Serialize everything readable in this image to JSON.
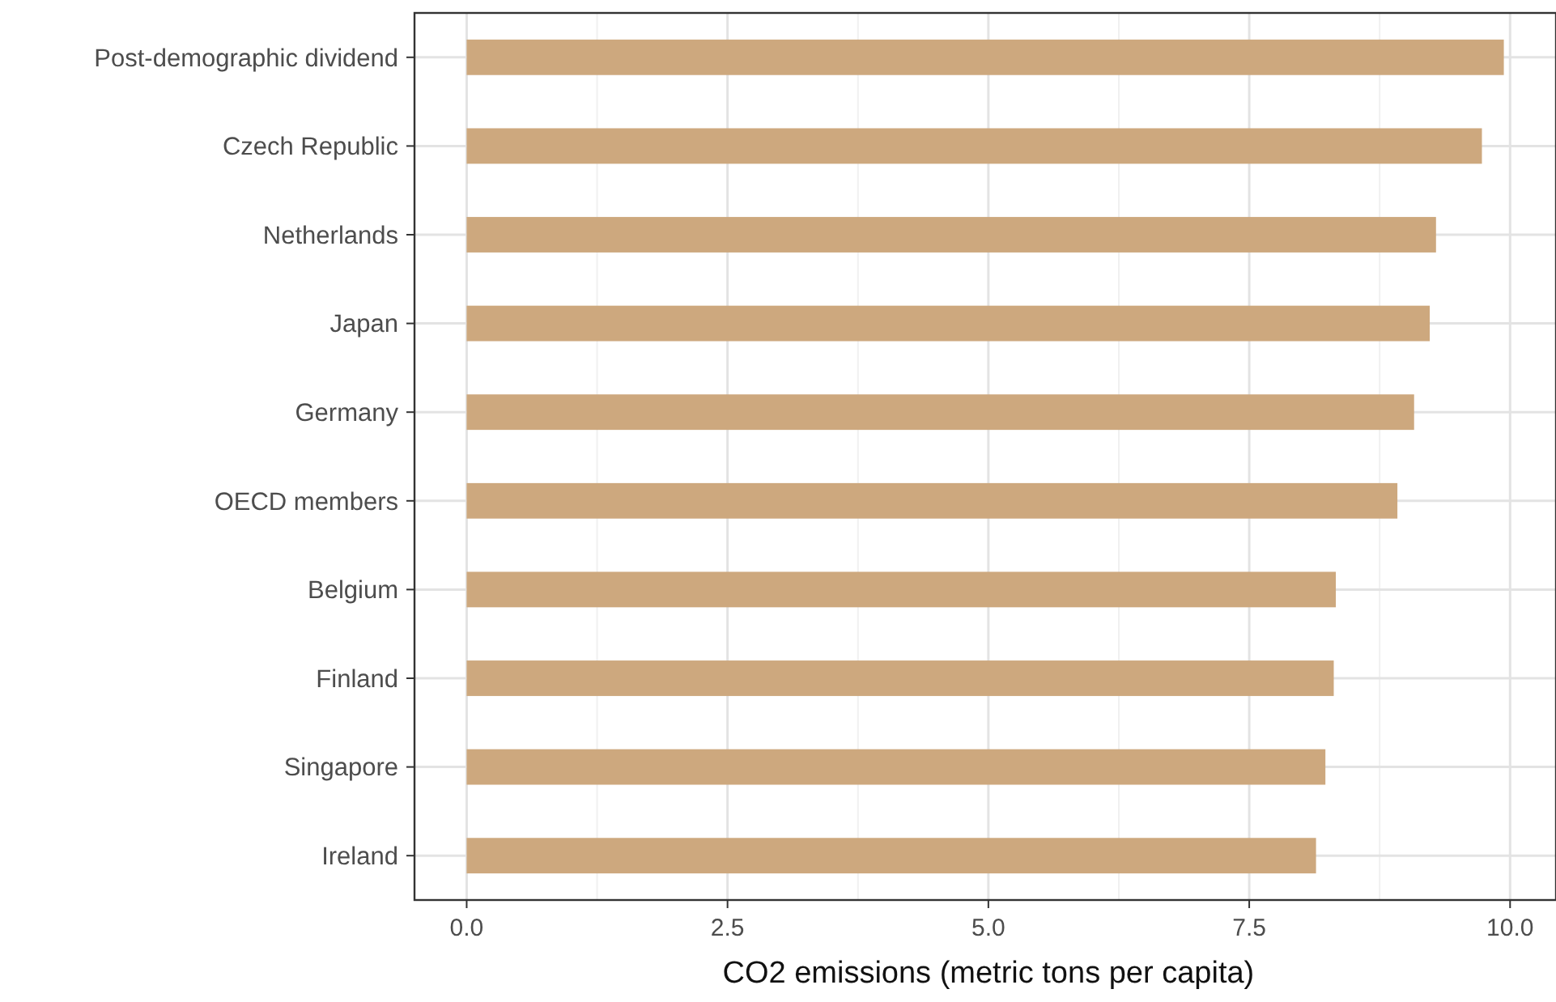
{
  "chart_data": {
    "type": "bar",
    "orientation": "horizontal",
    "xlabel": "CO2 emissions (metric tons per capita)",
    "categories": [
      "Post-demographic dividend",
      "Czech Republic",
      "Netherlands",
      "Japan",
      "Germany",
      "OECD members",
      "Belgium",
      "Finland",
      "Singapore",
      "Ireland"
    ],
    "values": [
      9.94,
      9.73,
      9.29,
      9.23,
      9.08,
      8.92,
      8.33,
      8.31,
      8.23,
      8.14
    ],
    "color": "#cda87e",
    "xlim": [
      -0.5,
      10.44
    ],
    "xticks": [
      {
        "value": 0,
        "label": "0.0"
      },
      2.5,
      {
        "value": 5,
        "label": "5.0"
      },
      7.5,
      {
        "value": 10,
        "label": "10.0"
      }
    ],
    "grid": true
  }
}
